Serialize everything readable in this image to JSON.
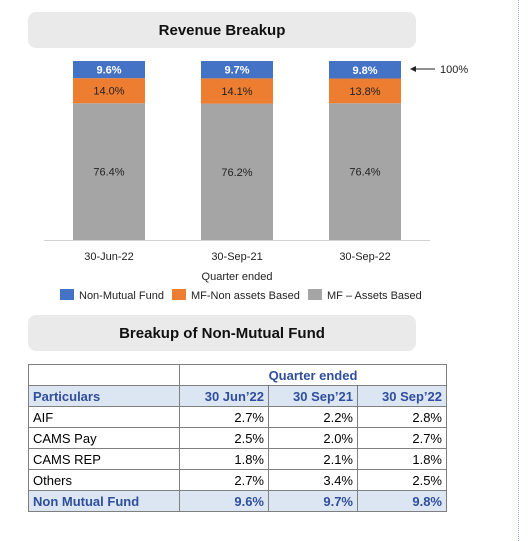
{
  "titles": {
    "revenue": "Revenue Breakup",
    "non_mf": "Breakup of Non-Mutual Fund"
  },
  "chart_data": {
    "type": "bar",
    "stacked": true,
    "title": "Revenue Breakup",
    "categories": [
      "30-Jun-22",
      "30-Sep-21",
      "30-Sep-22"
    ],
    "xlabel": "Quarter ended",
    "series": [
      {
        "name": "MF – Assets Based",
        "color": "#a5a5a5",
        "values": [
          76.4,
          76.2,
          76.4
        ],
        "labels": [
          "76.4%",
          "76.2%",
          "76.4%"
        ]
      },
      {
        "name": "MF-Non assets Based",
        "color": "#ed7d31",
        "values": [
          14.0,
          14.1,
          13.8
        ],
        "labels": [
          "14.0%",
          "14.1%",
          "13.8%"
        ]
      },
      {
        "name": "Non-Mutual Fund",
        "color": "#4472c4",
        "values": [
          9.6,
          9.7,
          9.8
        ],
        "labels": [
          "9.6%",
          "9.7%",
          "9.8%"
        ]
      }
    ],
    "legend_order": [
      "Non-Mutual Fund",
      "MF-Non assets Based",
      "MF – Assets Based"
    ],
    "annotation": "100%",
    "ylim": [
      0,
      100
    ],
    "grid": false,
    "legend_position": "bottom"
  },
  "table": {
    "group_header": "Quarter ended",
    "headers": [
      "Particulars",
      "30 Jun’22",
      "30 Sep’21",
      "30 Sep’22"
    ],
    "rows": [
      [
        "AIF",
        "2.7%",
        "2.2%",
        "2.8%"
      ],
      [
        "CAMS Pay",
        "2.5%",
        "2.0%",
        "2.7%"
      ],
      [
        "CAMS REP",
        "1.8%",
        "2.1%",
        "1.8%"
      ],
      [
        "Others",
        "2.7%",
        "3.4%",
        "2.5%"
      ]
    ],
    "total": [
      "Non Mutual Fund",
      "9.6%",
      "9.7%",
      "9.8%"
    ]
  }
}
